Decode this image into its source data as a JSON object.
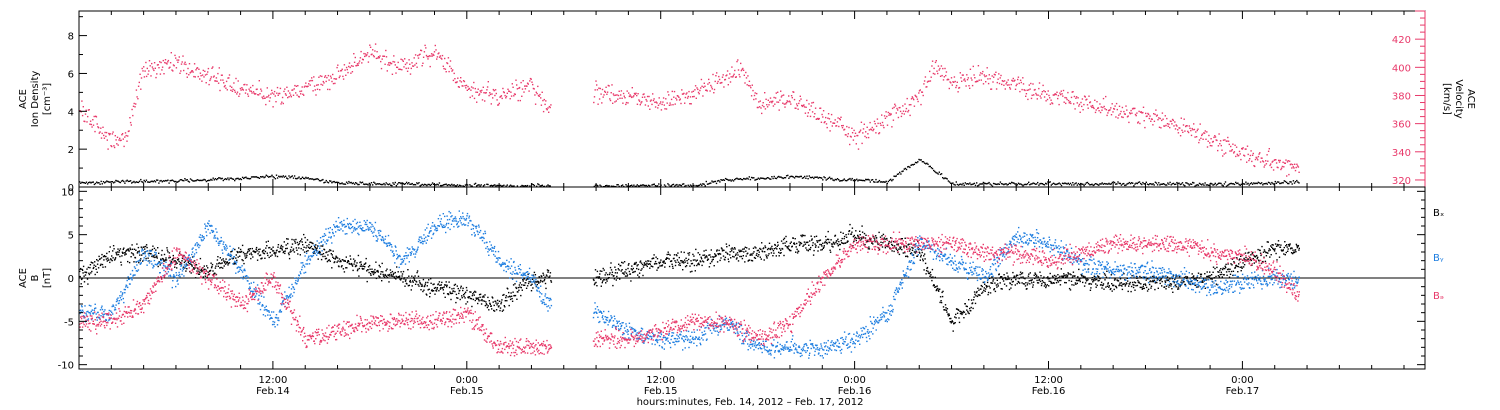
{
  "colors": {
    "black": "#000000",
    "blue": "#1e7ee0",
    "red": "#e8396a"
  },
  "xaxis": {
    "footer": "hours:minutes, Feb. 14, 2012 – Feb. 17, 2012",
    "ticks": [
      {
        "t": 12,
        "label1": "12:00",
        "label2": "Feb.14"
      },
      {
        "t": 24,
        "label1": "0:00",
        "label2": "Feb.15"
      },
      {
        "t": 36,
        "label1": "12:00",
        "label2": "Feb.15"
      },
      {
        "t": 48,
        "label1": "0:00",
        "label2": "Feb.16"
      },
      {
        "t": 60,
        "label1": "12:00",
        "label2": "Feb.16"
      },
      {
        "t": 72,
        "label1": "0:00",
        "label2": "Feb.17"
      }
    ]
  },
  "panel1": {
    "ylabel_left": [
      "ACE",
      "Ion Density",
      "[cm⁻³]"
    ],
    "ylabel_right": [
      "ACE",
      "Velocity",
      "[km/s]"
    ],
    "left_ticks": [
      "0",
      "2",
      "4",
      "6",
      "8"
    ],
    "right_ticks": [
      "320",
      "340",
      "360",
      "380",
      "400",
      "420"
    ]
  },
  "panel2": {
    "ylabel": [
      "ACE",
      "B",
      "[nT]"
    ],
    "ticks": [
      "-10",
      "-5",
      "0",
      "5",
      "10"
    ],
    "legend": [
      "Bₓ",
      "Bᵧ",
      "Bₔ"
    ]
  },
  "chart_data": [
    {
      "type": "scatter",
      "title": "",
      "xlabel": "hours:minutes, Feb. 14, 2012 – Feb. 17, 2012",
      "x_unit": "hours since Feb. 14, 2012 00:00",
      "xlim": [
        0,
        83.3
      ],
      "data_gaps_hours": [
        [
          29.2,
          31.8
        ]
      ],
      "ylabel_left": "ACE Ion Density [cm⁻³]",
      "ylim_left": [
        0,
        9.3
      ],
      "ylabel_right": "ACE Velocity [km/s]",
      "ylim_right": [
        315,
        440
      ],
      "series": [
        {
          "name": "Ion Density",
          "axis": "left",
          "color": "#000000",
          "x": [
            0,
            2,
            4,
            6,
            8,
            10,
            12,
            14,
            16,
            18,
            20,
            22,
            24,
            26,
            28,
            29,
            32,
            34,
            36,
            38,
            40,
            42,
            44,
            46,
            48,
            50,
            52,
            54,
            56,
            58,
            60,
            62,
            64,
            66,
            68,
            70,
            72,
            74,
            75.5
          ],
          "y": [
            0.25,
            0.3,
            0.35,
            0.35,
            0.4,
            0.5,
            0.6,
            0.5,
            0.25,
            0.2,
            0.2,
            0.15,
            0.1,
            0.1,
            0.1,
            0.1,
            0.1,
            0.1,
            0.1,
            0.1,
            0.4,
            0.5,
            0.6,
            0.5,
            0.4,
            0.3,
            1.5,
            0.2,
            0.2,
            0.2,
            0.2,
            0.2,
            0.2,
            0.2,
            0.2,
            0.2,
            0.2,
            0.25,
            0.3
          ]
        },
        {
          "name": "Velocity",
          "axis": "right",
          "color": "#e8396a",
          "x": [
            0,
            1,
            2,
            3,
            4,
            6,
            8,
            10,
            12,
            14,
            16,
            18,
            20,
            22,
            24,
            26,
            28,
            29,
            32,
            34,
            36,
            38,
            40,
            41,
            42,
            44,
            46,
            47,
            48,
            50,
            52,
            53,
            54,
            56,
            58,
            60,
            62,
            64,
            66,
            68,
            70,
            72,
            74,
            75.5
          ],
          "y": [
            370,
            360,
            348,
            352,
            400,
            403,
            395,
            385,
            380,
            385,
            395,
            410,
            400,
            412,
            385,
            380,
            388,
            368,
            383,
            380,
            375,
            382,
            392,
            400,
            375,
            378,
            365,
            360,
            350,
            365,
            380,
            400,
            390,
            395,
            387,
            380,
            376,
            370,
            365,
            360,
            348,
            340,
            333,
            330
          ]
        }
      ]
    },
    {
      "type": "scatter",
      "title": "",
      "xlabel": "hours:minutes, Feb. 14, 2012 – Feb. 17, 2012",
      "x_unit": "hours since Feb. 14, 2012 00:00",
      "xlim": [
        0,
        83.3
      ],
      "data_gaps_hours": [
        [
          29.2,
          31.8
        ]
      ],
      "ylabel": "ACE B [nT]",
      "ylim": [
        -10.5,
        10.5
      ],
      "series": [
        {
          "name": "Bx",
          "color": "#000000",
          "x": [
            0,
            2,
            4,
            6,
            8,
            10,
            12,
            14,
            16,
            18,
            20,
            22,
            24,
            26,
            28,
            29,
            32,
            34,
            36,
            38,
            40,
            42,
            44,
            46,
            48,
            50,
            52,
            54,
            56,
            58,
            60,
            62,
            64,
            66,
            68,
            70,
            72,
            74,
            75.5
          ],
          "y": [
            0,
            3,
            3,
            2,
            1,
            3,
            3,
            4,
            2,
            1,
            0,
            -1,
            -2,
            -3,
            0,
            0,
            0,
            1,
            2,
            2,
            3,
            3,
            4,
            4,
            5,
            4,
            3,
            -5,
            -1,
            0,
            0,
            0,
            -0.5,
            -0.5,
            -0.5,
            0,
            2,
            3.5,
            3.5
          ]
        },
        {
          "name": "By",
          "color": "#1e7ee0",
          "x": [
            0,
            2,
            4,
            6,
            8,
            10,
            12,
            14,
            16,
            18,
            20,
            22,
            24,
            26,
            28,
            29,
            32,
            34,
            36,
            38,
            40,
            42,
            44,
            46,
            48,
            50,
            52,
            54,
            56,
            58,
            60,
            62,
            64,
            66,
            68,
            70,
            72,
            74,
            75.5
          ],
          "y": [
            -4,
            -4,
            3,
            0,
            6,
            1,
            -5,
            2,
            6,
            6,
            2,
            6,
            7,
            2,
            0,
            -3,
            -4,
            -6,
            -7,
            -7,
            -5,
            -8,
            -8,
            -8,
            -7,
            -4,
            4,
            2,
            0,
            5,
            4,
            2,
            1,
            1,
            0,
            -1,
            -0.5,
            0,
            0
          ]
        },
        {
          "name": "Bz",
          "color": "#e8396a",
          "x": [
            0,
            2,
            4,
            6,
            8,
            10,
            12,
            14,
            16,
            18,
            20,
            22,
            24,
            26,
            28,
            29,
            32,
            34,
            36,
            38,
            40,
            42,
            44,
            46,
            48,
            50,
            52,
            54,
            56,
            58,
            60,
            62,
            64,
            66,
            68,
            70,
            72,
            74,
            75.5
          ],
          "y": [
            -5,
            -5,
            -3,
            3,
            0,
            -3,
            0,
            -7,
            -6,
            -5,
            -5,
            -5,
            -4,
            -8,
            -8,
            -8,
            -7,
            -7,
            -6,
            -5,
            -5,
            -7,
            -5,
            0,
            4,
            4,
            4,
            4,
            3,
            3,
            2,
            3,
            4,
            4,
            4,
            3,
            2.5,
            1,
            -2
          ]
        }
      ]
    }
  ]
}
